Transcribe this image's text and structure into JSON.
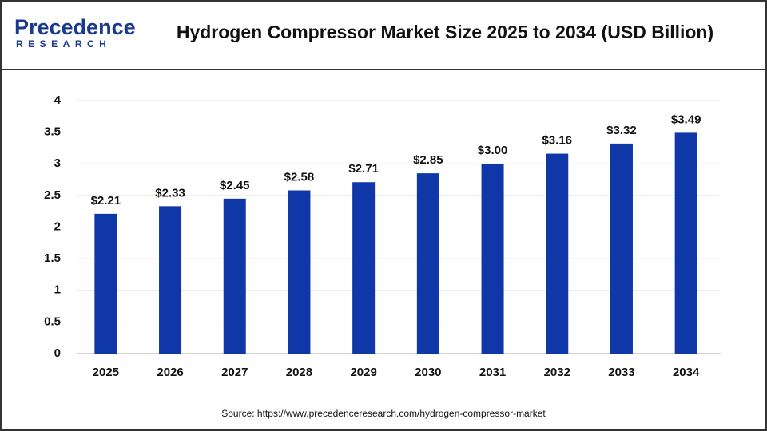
{
  "header": {
    "logo": "Precedence",
    "logo_sub": "RESEARCH"
  },
  "chart_data": {
    "type": "bar",
    "title": "Hydrogen Compressor Market Size 2025 to 2034 (USD Billion)",
    "categories": [
      "2025",
      "2026",
      "2027",
      "2028",
      "2029",
      "2030",
      "2031",
      "2032",
      "2033",
      "2034"
    ],
    "values": [
      2.21,
      2.33,
      2.45,
      2.58,
      2.71,
      2.85,
      3.0,
      3.16,
      3.32,
      3.49
    ],
    "value_labels": [
      "$2.21",
      "$2.33",
      "$2.45",
      "$2.58",
      "$2.71",
      "$2.85",
      "$3.00",
      "$3.16",
      "$3.32",
      "$3.49"
    ],
    "color": "#0f37a8",
    "ylim": [
      0,
      4
    ],
    "yticks": [
      0,
      0.5,
      1,
      1.5,
      2,
      2.5,
      3,
      3.5,
      4
    ],
    "grid": true,
    "source": "Source: https://www.precedenceresearch.com/hydrogen-compressor-market"
  }
}
